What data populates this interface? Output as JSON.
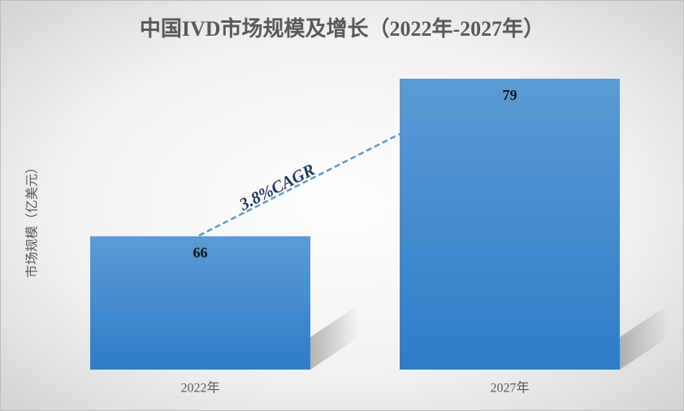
{
  "chart_data": {
    "type": "bar",
    "title": "中国IVD市场规模及增长（2022年-2027年）",
    "y_label": "市场规模（亿美元）",
    "categories": [
      "2022年",
      "2027年"
    ],
    "values": [
      66,
      79
    ],
    "color": "#4a8fd4",
    "ylim": [
      55,
      80
    ],
    "annotation": "3.8%CAGR"
  }
}
